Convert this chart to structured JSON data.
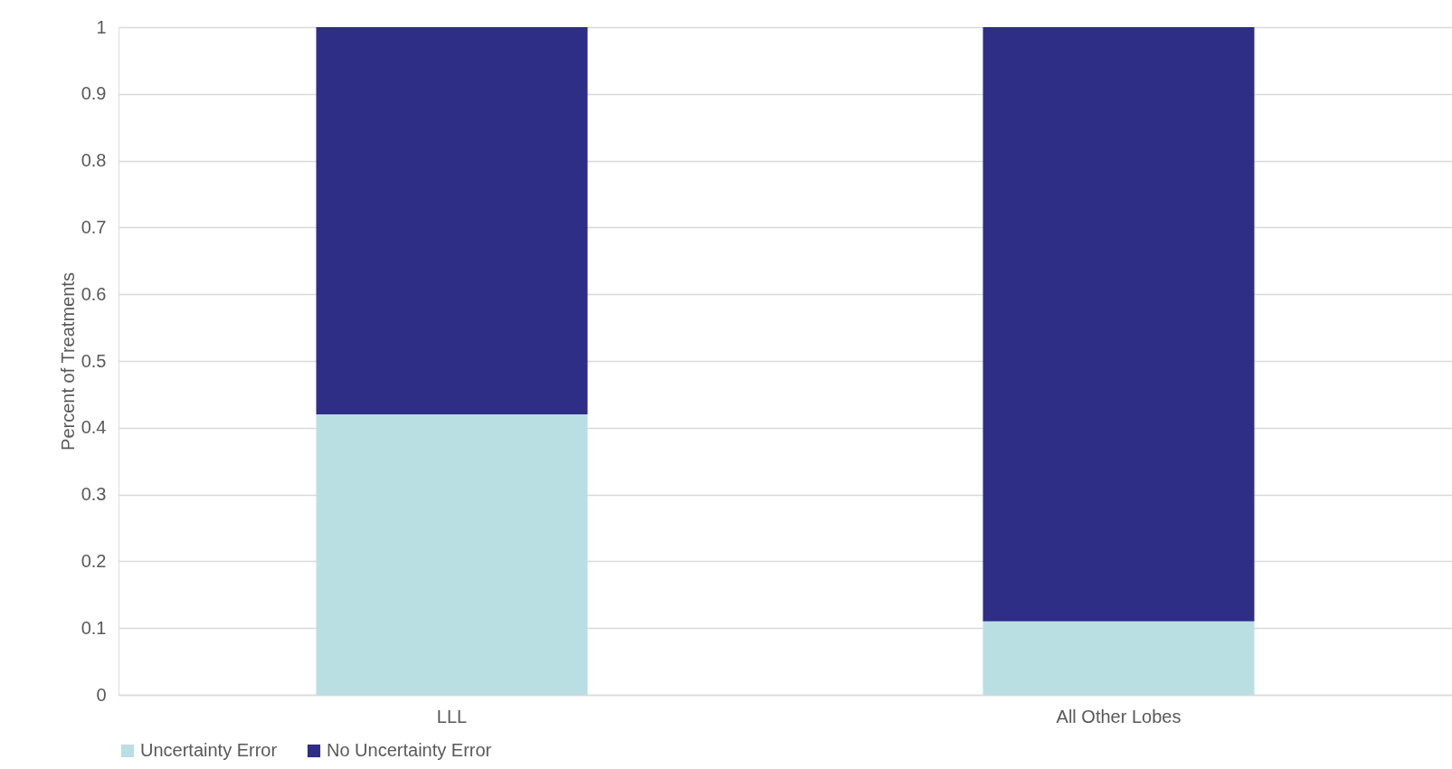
{
  "chart_data": {
    "type": "bar",
    "ylabel": "Percent of Treatments",
    "categories": [
      "LLL",
      "All Other Lobes"
    ],
    "series": [
      {
        "name": "Uncertainty Error",
        "color": "#badfe2",
        "values": [
          0.42,
          0.11
        ]
      },
      {
        "name": "No Uncertainty Error",
        "color": "#2e2e87",
        "values": [
          0.58,
          0.89
        ]
      }
    ],
    "stacked": true,
    "ylim": [
      0,
      1
    ],
    "yticks": [
      0,
      0.1,
      0.2,
      0.3,
      0.4,
      0.5,
      0.6,
      0.7,
      0.8,
      0.9,
      1
    ],
    "grid": "y",
    "legend": "bottom"
  }
}
